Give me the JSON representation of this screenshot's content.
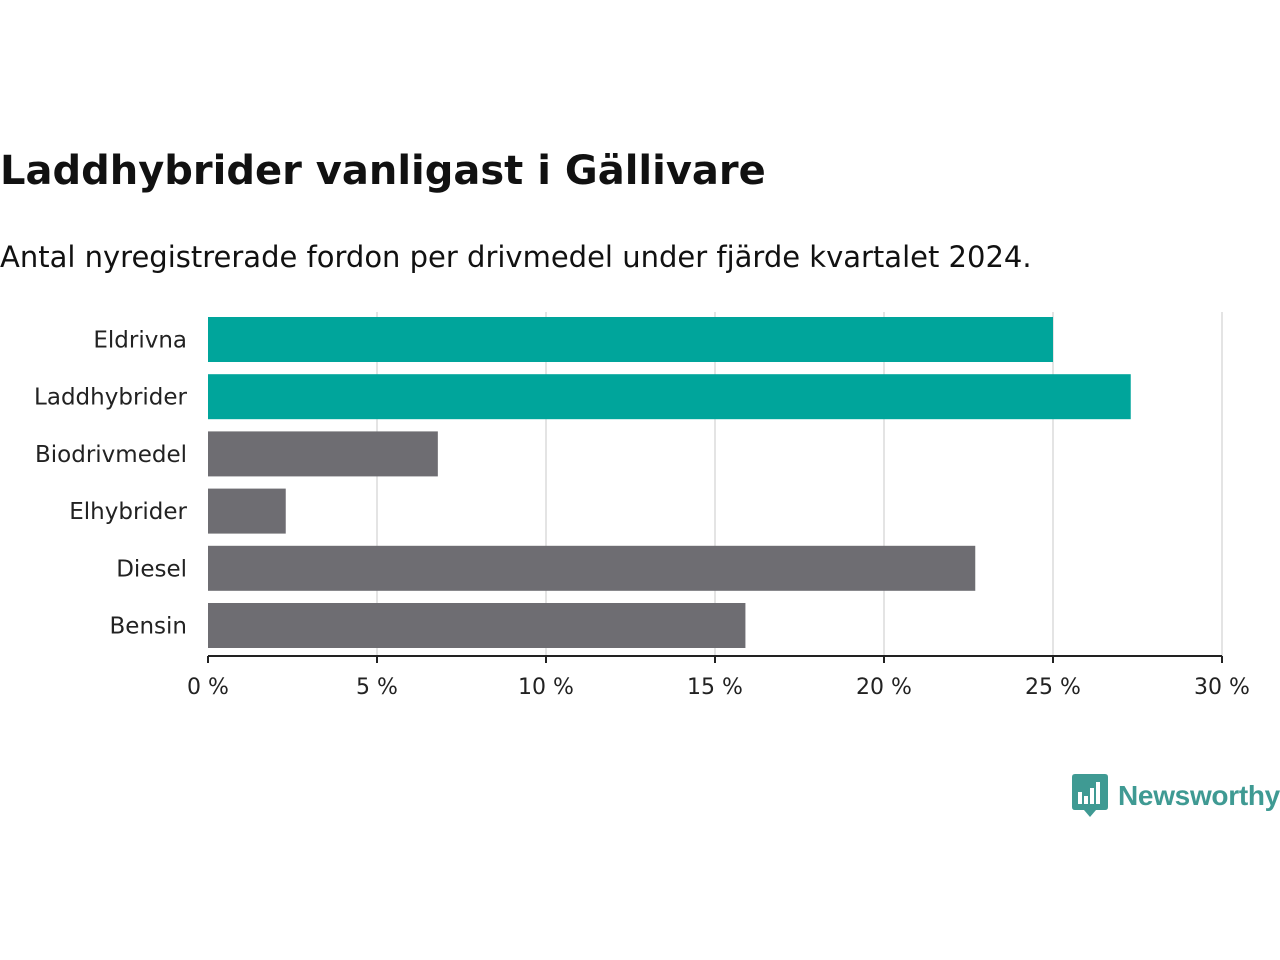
{
  "title": "Laddhybrider vanligast i Gällivare",
  "subtitle": "Antal nyregistrerade fordon per drivmedel under fjärde kvartalet 2024.",
  "brand": {
    "name": "Newsworthy",
    "icon": "newsworthy-logo-icon",
    "color": "#3f9a93"
  },
  "chart_data": {
    "type": "bar",
    "orientation": "horizontal",
    "categories": [
      "Eldrivna",
      "Laddhybrider",
      "Biodrivmedel",
      "Elhybrider",
      "Diesel",
      "Bensin"
    ],
    "values": [
      25.0,
      27.3,
      6.8,
      2.3,
      22.7,
      15.9
    ],
    "bar_colors": [
      "#00a59b",
      "#00a59b",
      "#6e6d72",
      "#6e6d72",
      "#6e6d72",
      "#6e6d72"
    ],
    "xlim": [
      0,
      30
    ],
    "xticks": [
      0,
      5,
      10,
      15,
      20,
      25,
      30
    ],
    "xtick_labels": [
      "0 %",
      "5 %",
      "10 %",
      "15 %",
      "20 %",
      "25 %",
      "30 %"
    ],
    "grid": true,
    "legend": "none"
  }
}
